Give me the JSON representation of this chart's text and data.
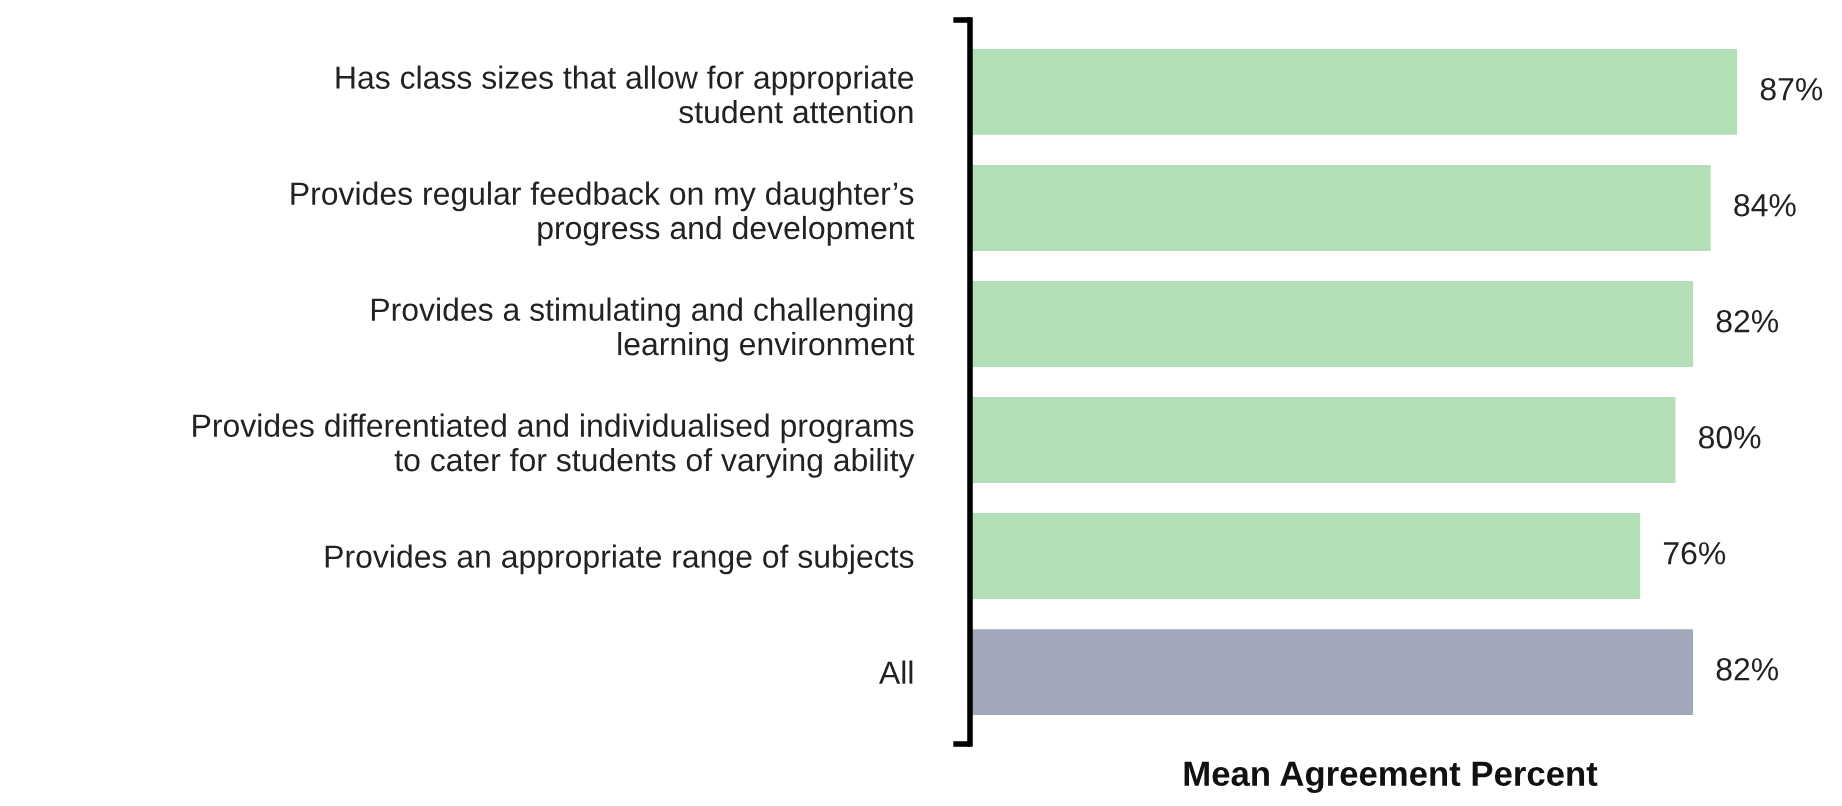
{
  "chart_data": {
    "type": "bar",
    "orientation": "horizontal",
    "xlabel": "Mean Agreement Percent",
    "categories": [
      "Has class sizes that allow for appropriate\nstudent attention",
      "Provides regular feedback on my daughter’s\nprogress and development",
      "Provides a stimulating and challenging\nlearning environment",
      "Provides differentiated and individualised programs\nto cater for students of varying ability",
      "Provides an appropriate range of subjects",
      "All"
    ],
    "values": [
      87,
      84,
      82,
      80,
      76,
      82
    ],
    "colors": [
      "#b3dfb6",
      "#b3dfb6",
      "#b3dfb6",
      "#b3dfb6",
      "#b3dfb6",
      "#a2a8b9"
    ],
    "value_labels": [
      "87%",
      "84%",
      "82%",
      "80%",
      "76%",
      "82%"
    ],
    "grid": false,
    "legend": false
  }
}
